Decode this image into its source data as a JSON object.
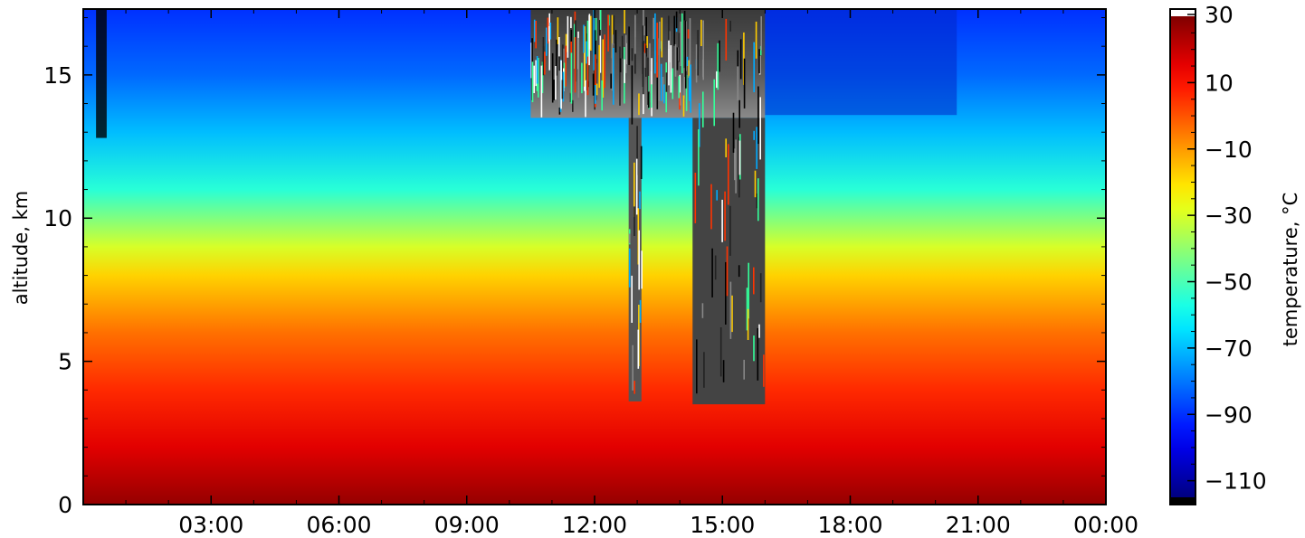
{
  "chart_data": {
    "type": "heatmap",
    "title": "",
    "xlabel": "",
    "ylabel": "altitude, km",
    "x_ticks": [
      "03:00",
      "06:00",
      "09:00",
      "12:00",
      "15:00",
      "18:00",
      "21:00",
      "00:00"
    ],
    "y_ticks": [
      "0",
      "5",
      "10",
      "15"
    ],
    "xlim": [
      "00:00",
      "24:00"
    ],
    "ylim": [
      0,
      17.3
    ],
    "colorbar": {
      "label": "temperature, °C",
      "range": [
        -115,
        30
      ],
      "ticks": [
        "30",
        "10",
        "−10",
        "−30",
        "−50",
        "−70",
        "−90",
        "−110"
      ],
      "tick_values": [
        30,
        10,
        -10,
        -30,
        -50,
        -70,
        -90,
        -110
      ],
      "colormap": "jet",
      "over_color": "#ffffff",
      "under_color": "#000000"
    },
    "profile": [
      {
        "altitude_km": 0,
        "temperature_c": 27
      },
      {
        "altitude_km": 2,
        "temperature_c": 16
      },
      {
        "altitude_km": 4,
        "temperature_c": 6
      },
      {
        "altitude_km": 6,
        "temperature_c": -4
      },
      {
        "altitude_km": 8,
        "temperature_c": -18
      },
      {
        "altitude_km": 9,
        "temperature_c": -30
      },
      {
        "altitude_km": 11,
        "temperature_c": -55
      },
      {
        "altitude_km": 13,
        "temperature_c": -70
      },
      {
        "altitude_km": 15,
        "temperature_c": -82
      },
      {
        "altitude_km": 17.3,
        "temperature_c": -90
      }
    ],
    "missing_data_regions": [
      {
        "from": "10:30",
        "to": "16:00",
        "altitude_km_min": 3.5,
        "altitude_km_max": 17.3
      }
    ]
  }
}
